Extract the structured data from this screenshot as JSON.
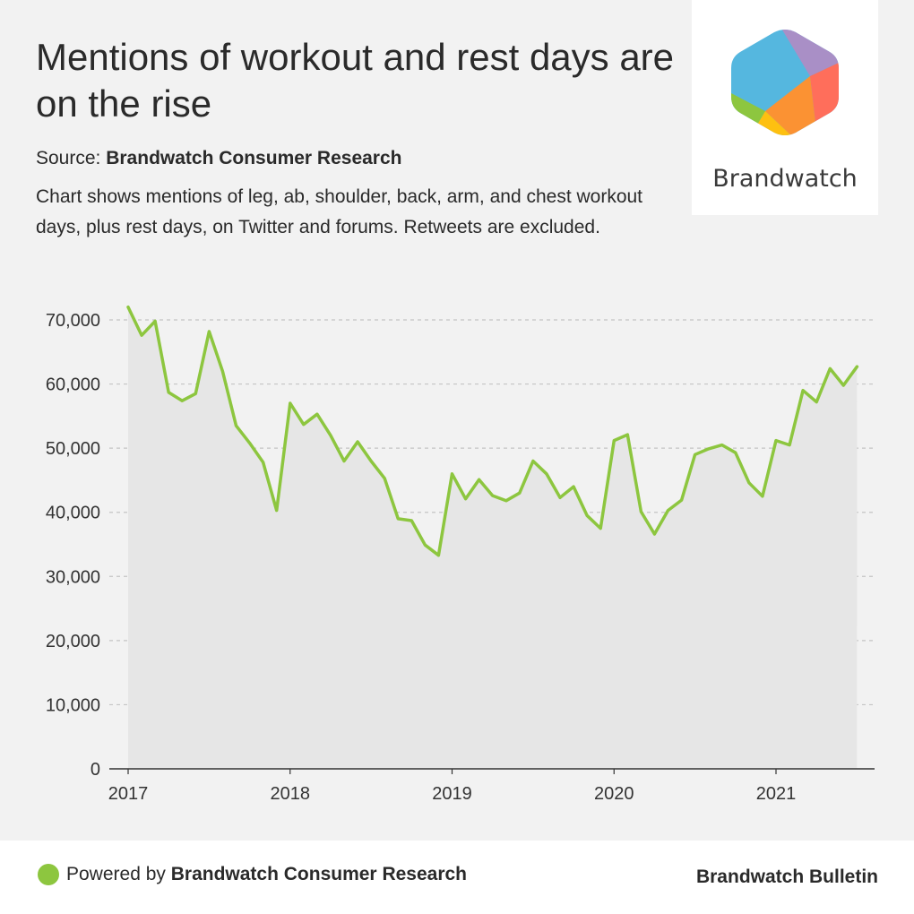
{
  "header": {
    "title": "Mentions of workout and rest days are on the rise",
    "source_prefix": "Source: ",
    "source_name": "Brandwatch Consumer Research",
    "description": "Chart shows mentions of leg, ab, shoulder, back, arm, and chest workout days, plus rest days, on Twitter and forums. Retweets are excluded."
  },
  "logo": {
    "wordmark": "Brandwatch"
  },
  "footer": {
    "powered_prefix": "Powered by ",
    "powered_name": "Brandwatch Consumer Research",
    "bulletin": "Brandwatch Bulletin"
  },
  "colors": {
    "line": "#8dc63f",
    "area": "#e6e6e6",
    "background": "#f2f2f2"
  },
  "chart_data": {
    "type": "area",
    "title": "Mentions of workout and rest days are on the rise",
    "xlabel": "",
    "ylabel": "",
    "ylim": [
      0,
      70000
    ],
    "yticks": [
      0,
      10000,
      20000,
      30000,
      40000,
      50000,
      60000,
      70000
    ],
    "ytick_labels": [
      "0",
      "10,000",
      "20,000",
      "30,000",
      "40,000",
      "50,000",
      "60,000",
      "70,000"
    ],
    "xtick_labels": [
      "2017",
      "2018",
      "2019",
      "2020",
      "2021"
    ],
    "grid": "horizontal dashed",
    "series": [
      {
        "x": [
          "2017-01",
          "2017-02",
          "2017-03",
          "2017-04",
          "2017-05",
          "2017-06",
          "2017-07",
          "2017-08",
          "2017-09",
          "2017-10",
          "2017-11",
          "2017-12",
          "2018-01",
          "2018-02",
          "2018-03",
          "2018-04",
          "2018-05",
          "2018-06",
          "2018-07",
          "2018-08",
          "2018-09",
          "2018-10",
          "2018-11",
          "2018-12",
          "2019-01",
          "2019-02",
          "2019-03",
          "2019-04",
          "2019-05",
          "2019-06",
          "2019-07",
          "2019-08",
          "2019-09",
          "2019-10",
          "2019-11",
          "2019-12",
          "2020-01",
          "2020-02",
          "2020-03",
          "2020-04",
          "2020-05",
          "2020-06",
          "2020-07",
          "2020-08",
          "2020-09",
          "2020-10",
          "2020-11",
          "2020-12",
          "2021-01",
          "2021-02",
          "2021-03",
          "2021-04",
          "2021-05",
          "2021-06",
          "2021-07"
        ],
        "values": [
          72000,
          67600,
          69800,
          58700,
          57400,
          58500,
          68200,
          62000,
          53500,
          50800,
          47800,
          40300,
          57000,
          53700,
          55300,
          52000,
          48000,
          51000,
          48000,
          45300,
          39000,
          38700,
          34900,
          33300,
          46000,
          42100,
          45100,
          42600,
          41800,
          43000,
          48000,
          46000,
          42300,
          44000,
          39500,
          37500,
          51200,
          52100,
          40100,
          36600,
          40300,
          41900,
          49000,
          49900,
          50500,
          49300,
          44600,
          42500,
          51200,
          50500,
          59000,
          57200,
          62400,
          59800,
          62700
        ]
      }
    ]
  }
}
